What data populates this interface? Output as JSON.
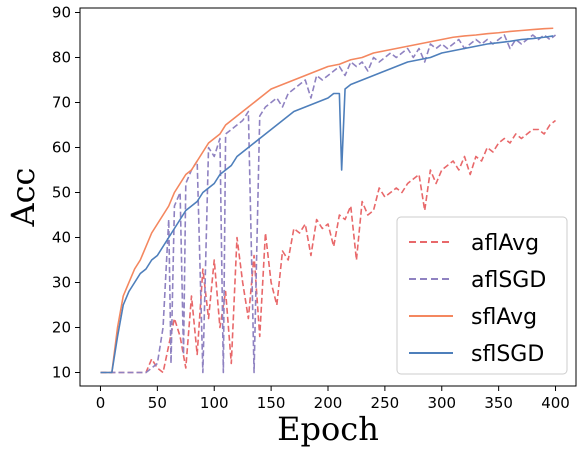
{
  "chart_data": {
    "type": "line",
    "title": "",
    "xlabel": "Epoch",
    "ylabel": "Acc",
    "xlim": [
      -18,
      418
    ],
    "ylim": [
      7,
      91
    ],
    "xticks": [
      0,
      50,
      100,
      150,
      200,
      250,
      300,
      350,
      400
    ],
    "yticks": [
      10,
      20,
      30,
      40,
      50,
      60,
      70,
      80,
      90
    ],
    "grid": false,
    "legend_position": "lower-right",
    "series": [
      {
        "name": "aflAvg",
        "color": "#e8686a",
        "style": "dashed",
        "x": [
          0,
          10,
          20,
          30,
          40,
          45,
          50,
          55,
          60,
          65,
          70,
          75,
          80,
          85,
          90,
          95,
          100,
          105,
          110,
          115,
          120,
          125,
          130,
          135,
          140,
          145,
          150,
          155,
          160,
          165,
          170,
          175,
          180,
          185,
          190,
          195,
          200,
          205,
          210,
          215,
          220,
          225,
          230,
          235,
          240,
          245,
          250,
          255,
          260,
          265,
          270,
          275,
          280,
          285,
          290,
          295,
          300,
          305,
          310,
          315,
          320,
          325,
          330,
          335,
          340,
          345,
          350,
          355,
          360,
          365,
          370,
          375,
          380,
          385,
          390,
          395,
          400
        ],
        "y": [
          10,
          10,
          10,
          10,
          10,
          13,
          11,
          10,
          16,
          22,
          18,
          11,
          27,
          14,
          33,
          22,
          35,
          20,
          28,
          12,
          40,
          30,
          22,
          36,
          18,
          41,
          30,
          25,
          37,
          35,
          42,
          41,
          43,
          36,
          44,
          42,
          43,
          38,
          45,
          44,
          47,
          35,
          48,
          45,
          46,
          51,
          49,
          50,
          51,
          50,
          52,
          53,
          54,
          46,
          55,
          52,
          55,
          56,
          57,
          55,
          58,
          54,
          58,
          57,
          60,
          59,
          61,
          62,
          61,
          63,
          62,
          63,
          64,
          64,
          63,
          65,
          66
        ]
      },
      {
        "name": "aflSGD",
        "color": "#8f82c1",
        "style": "dashed",
        "x": [
          0,
          10,
          20,
          30,
          40,
          50,
          55,
          60,
          62,
          65,
          70,
          73,
          75,
          80,
          85,
          90,
          95,
          100,
          105,
          108,
          110,
          115,
          120,
          125,
          130,
          135,
          140,
          145,
          150,
          155,
          160,
          165,
          170,
          175,
          180,
          185,
          190,
          195,
          200,
          205,
          210,
          215,
          220,
          225,
          230,
          235,
          240,
          245,
          250,
          255,
          260,
          265,
          270,
          275,
          280,
          285,
          290,
          295,
          300,
          305,
          310,
          315,
          320,
          325,
          330,
          335,
          340,
          345,
          350,
          355,
          360,
          365,
          370,
          375,
          380,
          385,
          390,
          395,
          400
        ],
        "y": [
          10,
          10,
          10,
          10,
          10,
          12,
          20,
          44,
          12,
          47,
          50,
          14,
          52,
          55,
          57,
          10,
          60,
          58,
          62,
          10,
          63,
          64,
          65,
          66,
          68,
          10,
          67,
          69,
          70,
          71,
          69,
          72,
          73,
          74,
          75,
          71,
          76,
          75,
          76,
          77,
          78,
          76,
          79,
          78,
          79,
          77,
          80,
          79,
          80,
          81,
          80,
          81,
          82,
          80,
          82,
          79,
          83,
          82,
          83,
          82,
          83,
          84,
          82,
          83,
          84,
          83,
          84,
          83,
          84,
          85,
          82,
          84,
          83,
          84,
          85,
          84,
          85,
          84,
          85
        ]
      },
      {
        "name": "sflAvg",
        "color": "#f4875f",
        "style": "solid",
        "x": [
          0,
          10,
          15,
          20,
          25,
          30,
          35,
          40,
          45,
          50,
          55,
          60,
          65,
          70,
          75,
          80,
          85,
          90,
          95,
          100,
          105,
          110,
          115,
          120,
          125,
          130,
          140,
          150,
          160,
          170,
          180,
          190,
          200,
          210,
          220,
          230,
          240,
          250,
          260,
          270,
          280,
          290,
          300,
          310,
          320,
          330,
          340,
          350,
          360,
          370,
          380,
          390,
          398
        ],
        "y": [
          10,
          10,
          20,
          27,
          30,
          33,
          35,
          38,
          41,
          43,
          45,
          47,
          50,
          52,
          54,
          55,
          57,
          59,
          61,
          62,
          63,
          65,
          66,
          67,
          68,
          69,
          71,
          73,
          74,
          75,
          76,
          77,
          78,
          78.5,
          79.5,
          80,
          81,
          81.5,
          82,
          82.5,
          83,
          83.5,
          84,
          84.5,
          84.8,
          85,
          85.3,
          85.5,
          85.8,
          86,
          86.2,
          86.4,
          86.5
        ]
      },
      {
        "name": "sflSGD",
        "color": "#4e7fbb",
        "style": "solid",
        "x": [
          0,
          10,
          15,
          20,
          25,
          30,
          35,
          40,
          45,
          50,
          55,
          60,
          65,
          70,
          75,
          80,
          85,
          90,
          95,
          100,
          105,
          110,
          115,
          120,
          125,
          130,
          140,
          150,
          160,
          170,
          180,
          190,
          200,
          205,
          210,
          212,
          215,
          220,
          230,
          240,
          250,
          260,
          270,
          280,
          290,
          300,
          310,
          320,
          330,
          340,
          350,
          360,
          370,
          380,
          390,
          398
        ],
        "y": [
          10,
          10,
          18,
          25,
          28,
          30,
          32,
          33,
          35,
          36,
          38,
          40,
          42,
          44,
          46,
          47,
          48,
          50,
          51,
          52,
          54,
          55,
          56,
          58,
          59,
          60,
          62,
          64,
          66,
          68,
          69,
          70,
          71,
          72,
          72,
          55,
          73,
          74,
          75,
          76,
          77,
          78,
          79,
          79.5,
          80,
          81,
          81.5,
          82,
          82.5,
          83,
          83.3,
          83.6,
          84,
          84.2,
          84.5,
          84.8
        ]
      }
    ]
  }
}
